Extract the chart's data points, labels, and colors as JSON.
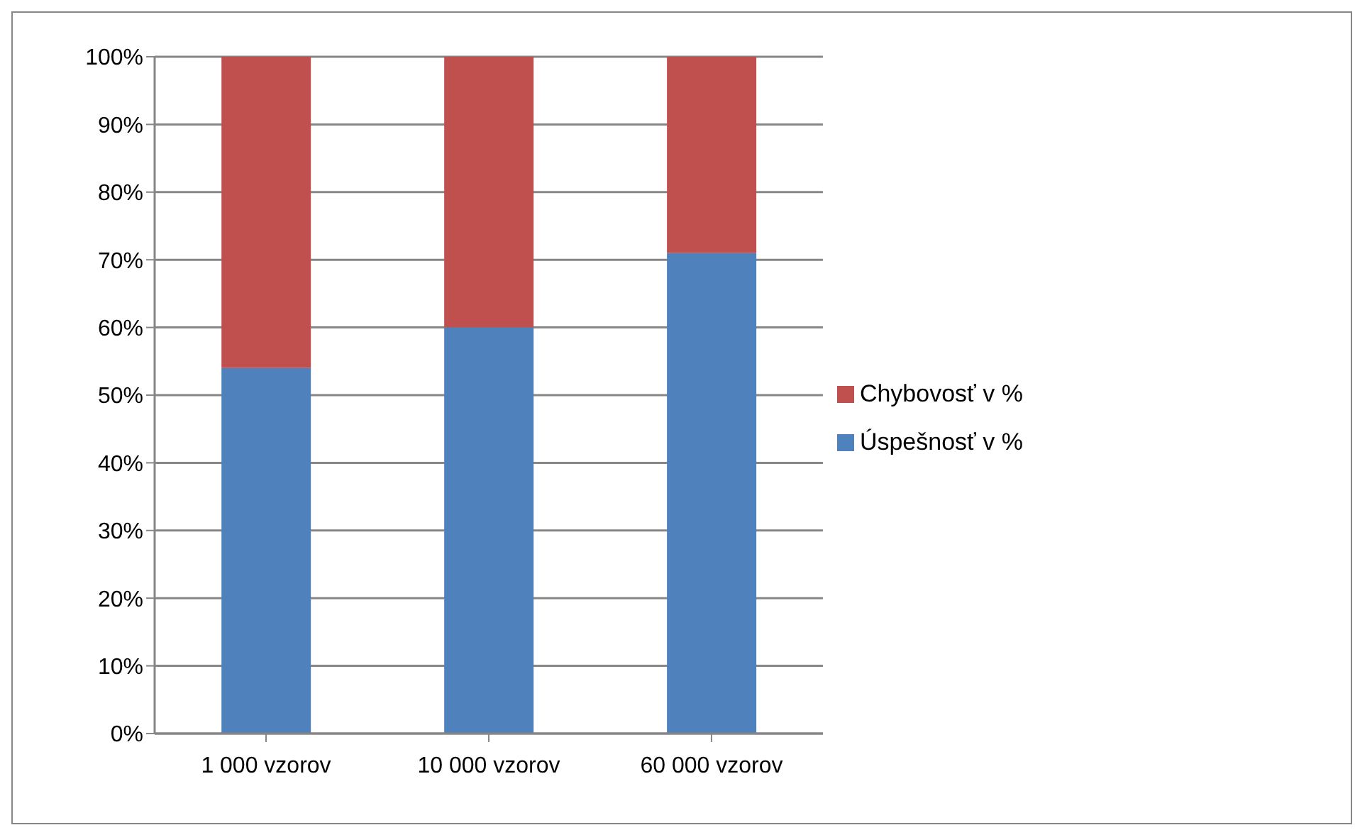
{
  "chart_data": {
    "type": "bar",
    "stacked": true,
    "categories": [
      "1 000 vzorov",
      "10 000 vzorov",
      "60 000 vzorov"
    ],
    "series": [
      {
        "name": "Úspešnosť v %",
        "color": "#4f81bd",
        "values": [
          54,
          60,
          71
        ]
      },
      {
        "name": "Chybovosť v %",
        "color": "#c0504d",
        "values": [
          46,
          40,
          29
        ]
      }
    ],
    "ylim": [
      0,
      100
    ],
    "yticks": [
      {
        "value": 0,
        "label": "0%"
      },
      {
        "value": 10,
        "label": "10%"
      },
      {
        "value": 20,
        "label": "20%"
      },
      {
        "value": 30,
        "label": "30%"
      },
      {
        "value": 40,
        "label": "40%"
      },
      {
        "value": 50,
        "label": "50%"
      },
      {
        "value": 60,
        "label": "60%"
      },
      {
        "value": 70,
        "label": "70%"
      },
      {
        "value": 80,
        "label": "80%"
      },
      {
        "value": 90,
        "label": "90%"
      },
      {
        "value": 100,
        "label": "100%"
      }
    ],
    "grid": "y",
    "legend": "right"
  }
}
